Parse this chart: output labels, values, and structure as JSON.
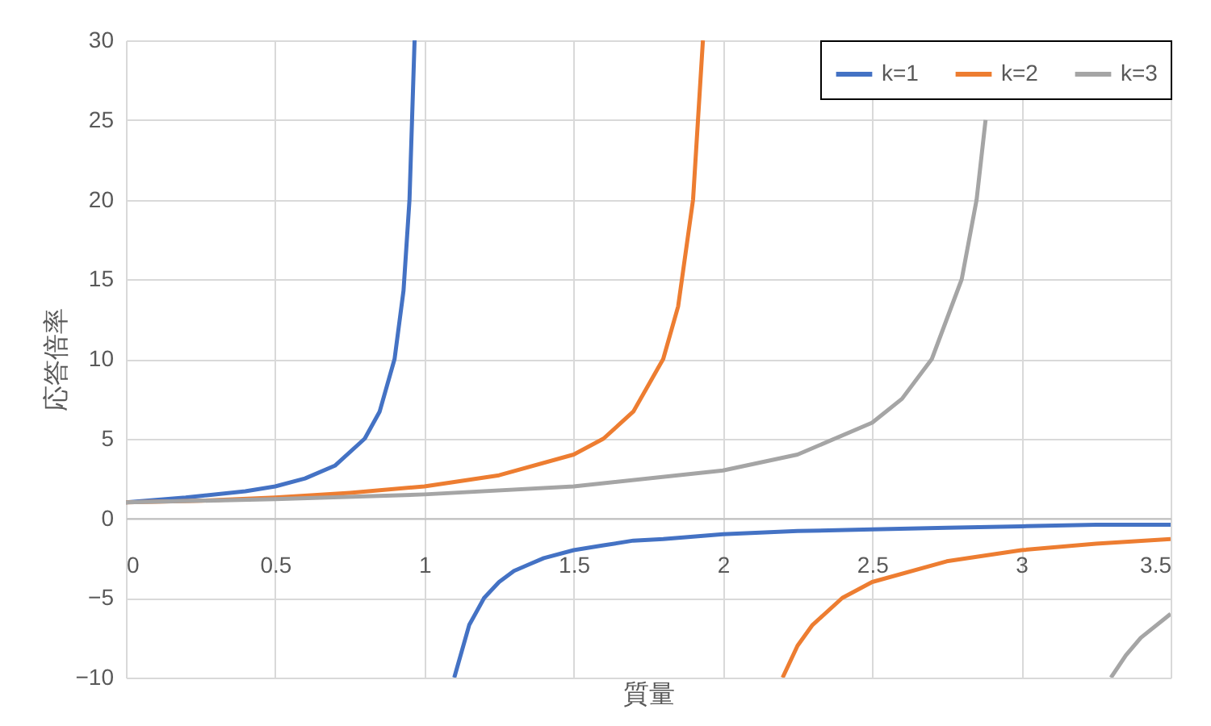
{
  "chart_data": {
    "type": "line",
    "xlabel": "質量",
    "ylabel": "応答倍率",
    "xlim": [
      0,
      3.5
    ],
    "xticks": [
      0,
      0.5,
      1,
      1.5,
      2,
      2.5,
      3,
      3.5
    ],
    "ylim": [
      -10,
      30
    ],
    "yticks": [
      -10,
      -5,
      0,
      5,
      10,
      15,
      20,
      25,
      30
    ],
    "grid": true,
    "legend": "top right",
    "line_style": "solid",
    "marker": "none",
    "series": [
      {
        "name": "k=1",
        "color": "#4472c4",
        "x": [
          0,
          0.2,
          0.4,
          0.5,
          0.6,
          0.7,
          0.8,
          0.85,
          0.9,
          0.93,
          0.95,
          0.967,
          1,
          1.1,
          1.15,
          1.2,
          1.25,
          1.3,
          1.35,
          1.4,
          1.5,
          1.6,
          1.7,
          1.8,
          2,
          2.25,
          2.5,
          2.75,
          3,
          3.25,
          3.5
        ],
        "values": [
          1,
          1.3,
          1.7,
          2,
          2.5,
          3.3,
          5,
          6.7,
          10,
          14.3,
          20,
          30,
          null,
          -10,
          -6.7,
          -5,
          -4,
          -3.3,
          -2.9,
          -2.5,
          -2,
          -1.7,
          -1.4,
          -1.3,
          -1,
          -0.8,
          -0.7,
          -0.6,
          -0.5,
          -0.4,
          -0.4
        ]
      },
      {
        "name": "k=2",
        "color": "#ed7d31",
        "x": [
          0,
          0.25,
          0.5,
          0.75,
          1,
          1.25,
          1.5,
          1.6,
          1.7,
          1.8,
          1.85,
          1.9,
          1.933,
          2,
          2.2,
          2.25,
          2.3,
          2.4,
          2.5,
          2.75,
          3,
          3.25,
          3.5
        ],
        "values": [
          1,
          1.1,
          1.3,
          1.6,
          2,
          2.7,
          4,
          5,
          6.7,
          10,
          13.3,
          20,
          30,
          null,
          -10,
          -8,
          -6.7,
          -5,
          -4,
          -2.7,
          -2,
          -1.6,
          -1.3
        ]
      },
      {
        "name": "k=3",
        "color": "#a5a5a5",
        "x": [
          0,
          0.5,
          1,
          1.5,
          2,
          2.25,
          2.5,
          2.6,
          2.7,
          2.8,
          2.85,
          2.88,
          3,
          3.3,
          3.35,
          3.4,
          3.5
        ],
        "values": [
          1,
          1.2,
          1.5,
          2,
          3,
          4,
          6,
          7.5,
          10,
          15,
          20,
          25,
          null,
          -10,
          -8.6,
          -7.5,
          -6
        ]
      }
    ]
  }
}
